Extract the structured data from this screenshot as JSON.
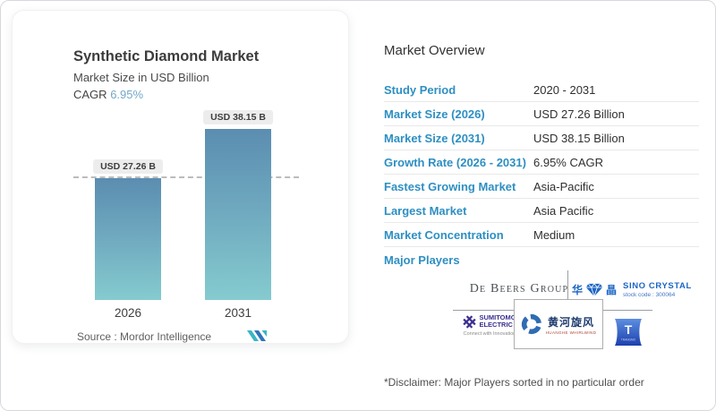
{
  "chart_card": {
    "title": "Synthetic Diamond Market",
    "subtitle": "Market Size in USD Billion",
    "cagr_label": "CAGR",
    "cagr_value": "6.95%",
    "source_label": "Source :",
    "source_value": "Mordor Intelligence",
    "logo": "mordor-intelligence-logo"
  },
  "chart_data": {
    "type": "bar",
    "categories": [
      "2026",
      "2031"
    ],
    "values": [
      27.26,
      38.15
    ],
    "value_labels": [
      "USD 27.26 B",
      "USD 38.15 B"
    ],
    "title": "Synthetic Diamond Market",
    "xlabel": "",
    "ylabel": "Market Size in USD Billion",
    "cagr": "6.95%",
    "reference_line_at": 27.26,
    "grid": false,
    "legend": false,
    "bar_gradient": [
      "#5b8db0",
      "#85cbcf"
    ]
  },
  "overview": {
    "title": "Market Overview",
    "rows": [
      {
        "label": "Study Period",
        "value": "2020 - 2031"
      },
      {
        "label": "Market Size (2026)",
        "value": "USD 27.26 Billion"
      },
      {
        "label": "Market Size (2031)",
        "value": "USD 38.15 Billion"
      },
      {
        "label": "Growth Rate (2026 - 2031)",
        "value": "6.95% CAGR"
      },
      {
        "label": "Fastest Growing Market",
        "value": "Asia-Pacific"
      },
      {
        "label": "Largest Market",
        "value": "Asia Pacific"
      },
      {
        "label": "Market Concentration",
        "value": "Medium"
      }
    ],
    "major_players_label": "Major Players",
    "players": {
      "debeers": {
        "name": "De Beers Group"
      },
      "sino": {
        "cn_left": "华",
        "cn_right": "晶",
        "monogram": "SC",
        "name": "SINO CRYSTAL",
        "stock": "stock code :  300064"
      },
      "sumitomo": {
        "line1": "SUMITOMO",
        "line2": "ELECTRIC",
        "tagline": "Connect with Innovation"
      },
      "huanghe": {
        "cn": "黄河旋风",
        "en": "HUANGHE WHIRLWIND"
      },
      "tlogo": {
        "letter": "T",
        "caption": "TRANGMO"
      }
    }
  },
  "disclaimer": "*Disclaimer: Major Players sorted in no particular order",
  "colors": {
    "label_blue": "#2e8fc2",
    "cagr_blue": "#74a7c9",
    "bar_top": "#5b8db0",
    "bar_bottom": "#85cbcf",
    "sino_blue": "#1c66c4",
    "sumitomo_purple": "#3a2f8f",
    "huanghe_navy": "#1d3a6e",
    "huanghe_red": "#b0402f",
    "tlogo_blue": "#1d3fae",
    "mordor_teal": "#3ab6c4",
    "mordor_blue": "#2f74ba"
  }
}
